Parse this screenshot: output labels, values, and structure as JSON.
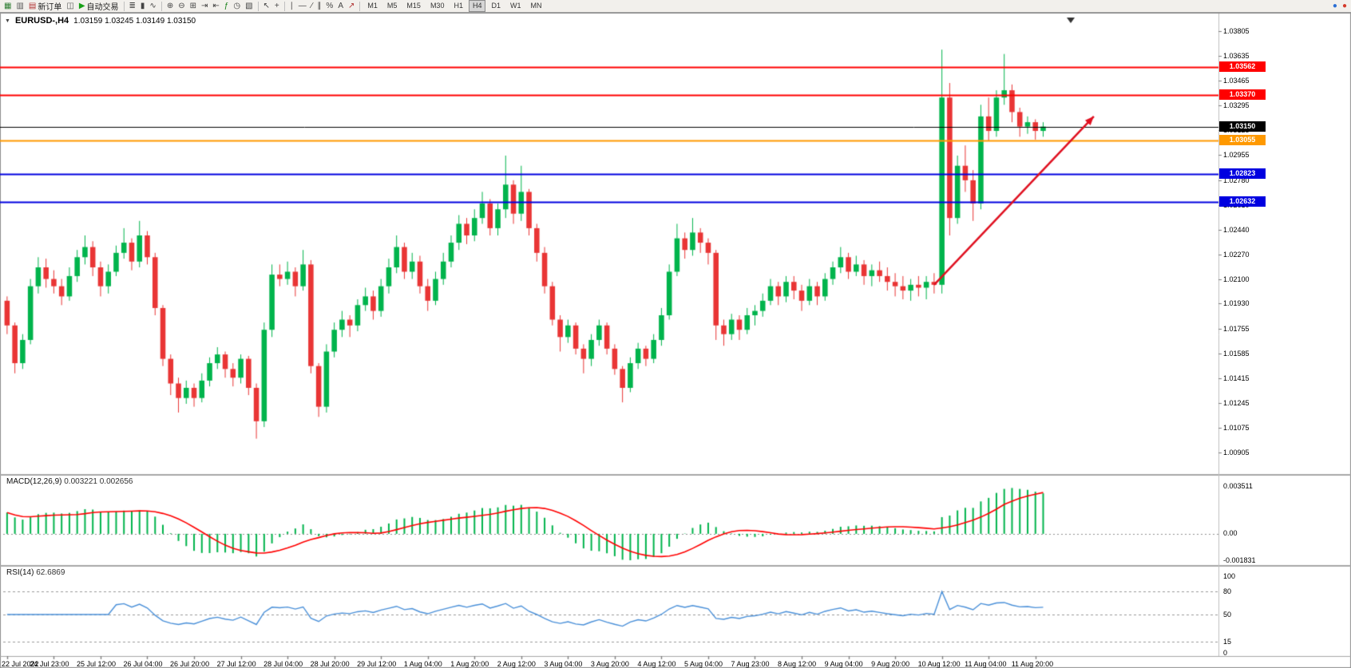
{
  "toolbar": {
    "items": [
      {
        "name": "charts-window-button",
        "glyph": "▦",
        "color": "#2e7d32"
      },
      {
        "name": "profiles-button",
        "glyph": "▥",
        "color": "#555555"
      },
      {
        "name": "new-order-button",
        "glyph": "▤",
        "label": "新订单",
        "color": "#b03030"
      },
      {
        "name": "terminal-button",
        "glyph": "◫",
        "color": "#555555"
      },
      {
        "name": "autotrading-button",
        "glyph": "▶",
        "label": "自动交易",
        "color": "#18a018"
      },
      {
        "sep": true
      },
      {
        "name": "bar-chart-mode-button",
        "glyph": "≣",
        "color": "#444444"
      },
      {
        "name": "candlestick-mode-button",
        "glyph": "▮",
        "color": "#444444"
      },
      {
        "name": "line-chart-mode-button",
        "glyph": "∿",
        "color": "#444444"
      },
      {
        "sep": true
      },
      {
        "name": "zoom-in-button",
        "glyph": "⊕",
        "color": "#444444"
      },
      {
        "name": "zoom-out-button",
        "glyph": "⊖",
        "color": "#444444"
      },
      {
        "name": "tile-windows-button",
        "glyph": "⊞",
        "color": "#444444"
      },
      {
        "name": "auto-scroll-button",
        "glyph": "⇥",
        "color": "#444444"
      },
      {
        "name": "chart-shift-button",
        "glyph": "⇤",
        "color": "#444444"
      },
      {
        "name": "indicators-button",
        "glyph": "ƒ",
        "color": "#188018"
      },
      {
        "name": "periods-button",
        "glyph": "◷",
        "color": "#444444"
      },
      {
        "name": "templates-button",
        "glyph": "▧",
        "color": "#444444"
      },
      {
        "sep": true
      },
      {
        "name": "cursor-button",
        "glyph": "↖",
        "color": "#444444"
      },
      {
        "name": "crosshair-button",
        "glyph": "+",
        "color": "#444444"
      },
      {
        "sep": true
      },
      {
        "name": "vertical-line-button",
        "glyph": "∣",
        "color": "#444444"
      },
      {
        "name": "horizontal-line-button",
        "glyph": "―",
        "color": "#444444"
      },
      {
        "name": "trendline-button",
        "glyph": "∕",
        "color": "#444444"
      },
      {
        "name": "channel-button",
        "glyph": "∥",
        "color": "#444444"
      },
      {
        "name": "fibonacci-button",
        "glyph": "%",
        "color": "#444444"
      },
      {
        "name": "text-button",
        "glyph": "A",
        "color": "#444444"
      },
      {
        "name": "arrows-button",
        "glyph": "↗",
        "color": "#b03030"
      }
    ],
    "timeframes": [
      "M1",
      "M5",
      "M15",
      "M30",
      "H1",
      "H4",
      "D1",
      "W1",
      "MN"
    ],
    "active_timeframe": "H4",
    "right_icons": [
      {
        "name": "community-icon",
        "glyph": "●",
        "color": "#2b6fd4"
      },
      {
        "name": "metaquotes-icon",
        "glyph": "●",
        "color": "#d43a2b"
      }
    ]
  },
  "chart": {
    "symbol_title": "EURUSD-,H4",
    "ohlc_text": "1.03159 1.03245 1.03149 1.03150"
  },
  "chart_data": {
    "type": "candlestick+indicators",
    "symbol": "EURUSD",
    "period": "H4",
    "colors": {
      "bull": "#00b44c",
      "bear": "#e93535",
      "background": "#ffffff",
      "axis_text": "#000000"
    },
    "candles": [
      [
        1.0195,
        1.0198,
        1.0172,
        1.0178
      ],
      [
        1.0178,
        1.018,
        1.0145,
        1.0152
      ],
      [
        1.0152,
        1.0172,
        1.0148,
        1.0168
      ],
      [
        1.0168,
        1.021,
        1.0165,
        1.0205
      ],
      [
        1.0205,
        1.0225,
        1.02,
        1.0218
      ],
      [
        1.0218,
        1.0224,
        1.0204,
        1.021
      ],
      [
        1.021,
        1.0216,
        1.02,
        1.0205
      ],
      [
        1.0205,
        1.021,
        1.0192,
        1.0198
      ],
      [
        1.0198,
        1.0218,
        1.0195,
        1.0212
      ],
      [
        1.0212,
        1.023,
        1.0208,
        1.0225
      ],
      [
        1.0225,
        1.024,
        1.022,
        1.0232
      ],
      [
        1.0232,
        1.0236,
        1.0212,
        1.0218
      ],
      [
        1.0218,
        1.0222,
        1.0198,
        1.0205
      ],
      [
        1.0205,
        1.022,
        1.02,
        1.0215
      ],
      [
        1.0215,
        1.0233,
        1.0212,
        1.0228
      ],
      [
        1.0228,
        1.0245,
        1.0224,
        1.0235
      ],
      [
        1.0235,
        1.0238,
        1.0216,
        1.0222
      ],
      [
        1.0222,
        1.025,
        1.0218,
        1.024
      ],
      [
        1.024,
        1.0243,
        1.022,
        1.0225
      ],
      [
        1.0225,
        1.0228,
        1.0185,
        1.019
      ],
      [
        1.019,
        1.0192,
        1.015,
        1.0155
      ],
      [
        1.0155,
        1.0158,
        1.013,
        1.0138
      ],
      [
        1.0138,
        1.0142,
        1.0118,
        1.0128
      ],
      [
        1.0128,
        1.014,
        1.0124,
        1.0135
      ],
      [
        1.0135,
        1.0138,
        1.0122,
        1.0128
      ],
      [
        1.0128,
        1.0145,
        1.0125,
        1.014
      ],
      [
        1.014,
        1.0156,
        1.0136,
        1.0152
      ],
      [
        1.0152,
        1.0163,
        1.0148,
        1.0158
      ],
      [
        1.0158,
        1.016,
        1.0142,
        1.0148
      ],
      [
        1.0148,
        1.0152,
        1.0136,
        1.0142
      ],
      [
        1.0142,
        1.0158,
        1.0138,
        1.0155
      ],
      [
        1.0155,
        1.0157,
        1.013,
        1.0135
      ],
      [
        1.0135,
        1.0138,
        1.01,
        1.0112
      ],
      [
        1.0112,
        1.018,
        1.0108,
        1.0175
      ],
      [
        1.0175,
        1.022,
        1.017,
        1.0213
      ],
      [
        1.0213,
        1.022,
        1.0205,
        1.021
      ],
      [
        1.021,
        1.0222,
        1.0206,
        1.0215
      ],
      [
        1.0215,
        1.0218,
        1.0198,
        1.0205
      ],
      [
        1.0205,
        1.023,
        1.0202,
        1.022
      ],
      [
        1.022,
        1.0223,
        1.0145,
        1.015
      ],
      [
        1.015,
        1.0152,
        1.0115,
        1.0122
      ],
      [
        1.0122,
        1.0165,
        1.0118,
        1.016
      ],
      [
        1.016,
        1.018,
        1.0156,
        1.0175
      ],
      [
        1.0175,
        1.0188,
        1.017,
        1.0182
      ],
      [
        1.0182,
        1.0185,
        1.017,
        1.0178
      ],
      [
        1.0178,
        1.0196,
        1.0174,
        1.0192
      ],
      [
        1.0192,
        1.0204,
        1.0188,
        1.0198
      ],
      [
        1.0198,
        1.0202,
        1.0182,
        1.0188
      ],
      [
        1.0188,
        1.021,
        1.0184,
        1.0205
      ],
      [
        1.0205,
        1.0224,
        1.02,
        1.0218
      ],
      [
        1.0218,
        1.024,
        1.0214,
        1.0232
      ],
      [
        1.0232,
        1.0235,
        1.021,
        1.0215
      ],
      [
        1.0215,
        1.0228,
        1.021,
        1.0222
      ],
      [
        1.0222,
        1.0226,
        1.02,
        1.0205
      ],
      [
        1.0205,
        1.021,
        1.0188,
        1.0195
      ],
      [
        1.0195,
        1.0215,
        1.0192,
        1.021
      ],
      [
        1.021,
        1.0228,
        1.0206,
        1.0222
      ],
      [
        1.0222,
        1.024,
        1.0218,
        1.0235
      ],
      [
        1.0235,
        1.0254,
        1.023,
        1.0248
      ],
      [
        1.0248,
        1.0252,
        1.0234,
        1.024
      ],
      [
        1.024,
        1.0258,
        1.0236,
        1.0252
      ],
      [
        1.0252,
        1.027,
        1.0248,
        1.0262
      ],
      [
        1.0262,
        1.0265,
        1.024,
        1.0245
      ],
      [
        1.0245,
        1.0262,
        1.024,
        1.0258
      ],
      [
        1.0258,
        1.0295,
        1.0252,
        1.0275
      ],
      [
        1.0275,
        1.0278,
        1.0248,
        1.0255
      ],
      [
        1.0255,
        1.0288,
        1.025,
        1.027
      ],
      [
        1.027,
        1.0272,
        1.024,
        1.0245
      ],
      [
        1.0245,
        1.0248,
        1.0222,
        1.0228
      ],
      [
        1.0228,
        1.0232,
        1.02,
        1.0205
      ],
      [
        1.0205,
        1.0208,
        1.0178,
        1.0182
      ],
      [
        1.0182,
        1.0185,
        1.016,
        1.017
      ],
      [
        1.017,
        1.0182,
        1.0166,
        1.0178
      ],
      [
        1.0178,
        1.018,
        1.0158,
        1.0162
      ],
      [
        1.0162,
        1.0165,
        1.0145,
        1.0155
      ],
      [
        1.0155,
        1.0172,
        1.015,
        1.0168
      ],
      [
        1.0168,
        1.0182,
        1.0164,
        1.0178
      ],
      [
        1.0178,
        1.018,
        1.0158,
        1.0162
      ],
      [
        1.0162,
        1.0165,
        1.0144,
        1.0148
      ],
      [
        1.0148,
        1.015,
        1.0125,
        1.0135
      ],
      [
        1.0135,
        1.0156,
        1.0132,
        1.0152
      ],
      [
        1.0152,
        1.0166,
        1.0148,
        1.0162
      ],
      [
        1.0162,
        1.0164,
        1.015,
        1.0155
      ],
      [
        1.0155,
        1.0172,
        1.0152,
        1.0168
      ],
      [
        1.0168,
        1.019,
        1.0164,
        1.0185
      ],
      [
        1.0185,
        1.022,
        1.0182,
        1.0215
      ],
      [
        1.0215,
        1.0248,
        1.0212,
        1.0238
      ],
      [
        1.0238,
        1.0242,
        1.0224,
        1.023
      ],
      [
        1.023,
        1.0252,
        1.0226,
        1.0242
      ],
      [
        1.0242,
        1.0245,
        1.0228,
        1.0235
      ],
      [
        1.0235,
        1.0238,
        1.022,
        1.0228
      ],
      [
        1.0228,
        1.023,
        1.0168,
        1.0178
      ],
      [
        1.0178,
        1.0182,
        1.0164,
        1.0172
      ],
      [
        1.0172,
        1.0186,
        1.0168,
        1.0182
      ],
      [
        1.0182,
        1.0185,
        1.0168,
        1.0175
      ],
      [
        1.0175,
        1.019,
        1.0172,
        1.0185
      ],
      [
        1.0185,
        1.0192,
        1.0178,
        1.0188
      ],
      [
        1.0188,
        1.02,
        1.0184,
        1.0195
      ],
      [
        1.0195,
        1.021,
        1.0192,
        1.0205
      ],
      [
        1.0205,
        1.0208,
        1.0192,
        1.0198
      ],
      [
        1.0198,
        1.0212,
        1.0194,
        1.0208
      ],
      [
        1.0208,
        1.0212,
        1.0196,
        1.0202
      ],
      [
        1.0202,
        1.0206,
        1.0188,
        1.0195
      ],
      [
        1.0195,
        1.021,
        1.0192,
        1.0205
      ],
      [
        1.0205,
        1.0208,
        1.0192,
        1.0198
      ],
      [
        1.0198,
        1.0214,
        1.0195,
        1.021
      ],
      [
        1.021,
        1.0222,
        1.0206,
        1.0218
      ],
      [
        1.0218,
        1.0232,
        1.0214,
        1.0225
      ],
      [
        1.0225,
        1.0228,
        1.021,
        1.0215
      ],
      [
        1.0215,
        1.0226,
        1.0212,
        1.022
      ],
      [
        1.022,
        1.0223,
        1.0206,
        1.0212
      ],
      [
        1.0212,
        1.022,
        1.0205,
        1.0216
      ],
      [
        1.0216,
        1.0222,
        1.0208,
        1.0212
      ],
      [
        1.0212,
        1.0218,
        1.0202,
        1.0208
      ],
      [
        1.0208,
        1.0214,
        1.0198,
        1.0205
      ],
      [
        1.0205,
        1.0212,
        1.0196,
        1.0202
      ],
      [
        1.0202,
        1.021,
        1.0195,
        1.0206
      ],
      [
        1.0206,
        1.0212,
        1.0198,
        1.0204
      ],
      [
        1.0204,
        1.0212,
        1.0196,
        1.0208
      ],
      [
        1.0208,
        1.0214,
        1.02,
        1.0206
      ],
      [
        1.0206,
        1.0368,
        1.02,
        1.0335
      ],
      [
        1.0335,
        1.0345,
        1.024,
        1.0252
      ],
      [
        1.0252,
        1.0295,
        1.0248,
        1.0288
      ],
      [
        1.0288,
        1.0302,
        1.027,
        1.0278
      ],
      [
        1.0278,
        1.0285,
        1.025,
        1.0262
      ],
      [
        1.0262,
        1.033,
        1.0258,
        1.0322
      ],
      [
        1.0322,
        1.0335,
        1.0305,
        1.0312
      ],
      [
        1.0312,
        1.034,
        1.0308,
        1.0335
      ],
      [
        1.0335,
        1.0365,
        1.033,
        1.034
      ],
      [
        1.034,
        1.0344,
        1.0318,
        1.0325
      ],
      [
        1.0325,
        1.0328,
        1.0308,
        1.0315
      ],
      [
        1.0315,
        1.0322,
        1.031,
        1.0318
      ],
      [
        1.0318,
        1.032,
        1.0306,
        1.0312
      ],
      [
        1.0312,
        1.0318,
        1.0308,
        1.0315
      ]
    ],
    "price_axis": {
      "max": 1.0389,
      "min": 1.008,
      "ticks": [
        "1.03805",
        "1.03635",
        "1.03465",
        "1.03295",
        "1.03125",
        "1.02955",
        "1.02780",
        "1.02610",
        "1.02440",
        "1.02270",
        "1.02100",
        "1.01930",
        "1.01755",
        "1.01585",
        "1.01415",
        "1.01245",
        "1.01075",
        "1.00905"
      ]
    },
    "time_axis": {
      "label_step": 6,
      "labels": [
        "22 Jul 2022",
        "24 Jul 23:00",
        "25 Jul 12:00",
        "26 Jul 04:00",
        "26 Jul 20:00",
        "27 Jul 12:00",
        "28 Jul 04:00",
        "28 Jul 20:00",
        "29 Jul 12:00",
        "1 Aug 04:00",
        "1 Aug 20:00",
        "2 Aug 12:00",
        "3 Aug 04:00",
        "3 Aug 20:00",
        "4 Aug 12:00",
        "5 Aug 04:00",
        "7 Aug 23:00",
        "8 Aug 12:00",
        "9 Aug 04:00",
        "9 Aug 20:00",
        "10 Aug 12:00",
        "11 Aug 04:00",
        "11 Aug 20:00"
      ]
    },
    "hlines": [
      {
        "price": 1.03562,
        "color": "#ff0000",
        "width": 2,
        "label": "1.03562"
      },
      {
        "price": 1.0337,
        "color": "#ff0000",
        "width": 2,
        "label": "1.03370"
      },
      {
        "price": 1.0315,
        "color": "#000000",
        "width": 1,
        "label": "1.03150"
      },
      {
        "price": 1.03055,
        "color": "#ff9900",
        "width": 2,
        "label": "1.03055"
      },
      {
        "price": 1.02823,
        "color": "#0000e0",
        "width": 2,
        "label": "1.02823"
      },
      {
        "price": 1.02632,
        "color": "#0000e0",
        "width": 2,
        "label": "1.02632"
      }
    ],
    "arrow": {
      "from_slot": 119,
      "from_price": 1.0206,
      "to_slot": 139.5,
      "to_price": 1.0322,
      "color": "#e01020",
      "width": 2.5
    },
    "macd": {
      "label": "MACD(12,26,9)",
      "values_text": "0.003221 0.002656",
      "fast": 12,
      "slow": 26,
      "signal": 9,
      "axis_labels": [
        "0.003511",
        "0.00",
        "-0.001831"
      ],
      "hist_color": "#00b44c",
      "signal_color": "#ff0000"
    },
    "rsi": {
      "label": "RSI(14)",
      "value_text": "62.6869",
      "period": 14,
      "levels": [
        80,
        50,
        15
      ],
      "axis_labels": [
        "100",
        "80",
        "50",
        "15",
        "0"
      ],
      "line_color": "#4a90d9"
    }
  }
}
